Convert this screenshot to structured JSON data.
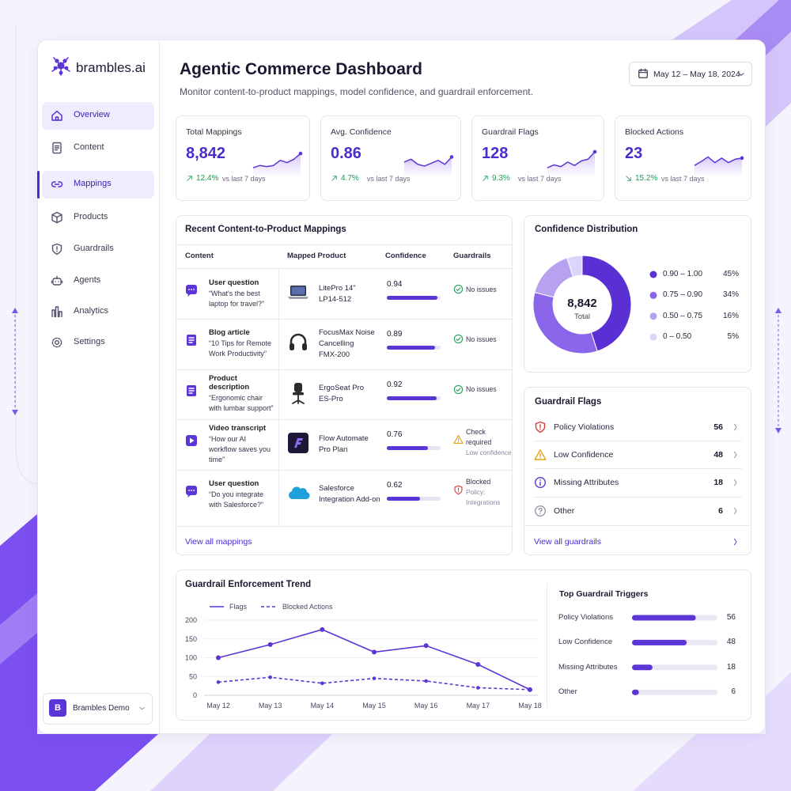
{
  "brand": {
    "name": "brambles.ai"
  },
  "nav": {
    "items": [
      "Overview",
      "Content",
      "Mappings",
      "Products",
      "Guardrails",
      "Agents",
      "Analytics",
      "Settings"
    ],
    "active": 2,
    "hovered": 0
  },
  "account": {
    "initial": "B",
    "name": "Brambles Demo"
  },
  "header": {
    "title": "Agentic Commerce Dashboard",
    "subtitle": "Monitor content-to-product mappings, model confidence, and guardrail enforcement.",
    "date_range": "May 12 – May 18, 2024"
  },
  "kpis": {
    "sparkline_ylim": [
      0,
      100
    ],
    "cards": [
      {
        "label": "Total Mappings",
        "value": "8,842",
        "change": "12.4%",
        "direction": "up",
        "compare": "vs last 7 days",
        "sparkline": [
          22,
          30,
          26,
          30,
          48,
          40,
          52,
          72
        ]
      },
      {
        "label": "Avg. Confidence",
        "value": "0.86",
        "change": "4.7%",
        "direction": "up",
        "compare": "vs last 7 days",
        "sparkline": [
          42,
          52,
          34,
          28,
          38,
          48,
          34,
          60
        ]
      },
      {
        "label": "Guardrail Flags",
        "value": "128",
        "change": "9.3%",
        "direction": "up",
        "compare": "vs last 7 days",
        "sparkline": [
          22,
          32,
          26,
          42,
          30,
          46,
          52,
          78
        ]
      },
      {
        "label": "Blocked Actions",
        "value": "23",
        "change": "15.2%",
        "direction": "down",
        "compare": "vs last 7 days",
        "sparkline": [
          30,
          44,
          60,
          40,
          56,
          40,
          52,
          56
        ]
      }
    ]
  },
  "mappings": {
    "title": "Recent Content-to-Product Mappings",
    "columns": [
      "Content",
      "Mapped Product",
      "Confidence",
      "Guardrails"
    ],
    "confidence_xlim": [
      0,
      1
    ],
    "rows": [
      {
        "type": "User question",
        "text": "“What's the best laptop for travel?”",
        "product": "LitePro 14\"",
        "detail": "LP14-512",
        "confidence": 0.94,
        "status": "No issues"
      },
      {
        "type": "Blog article",
        "text": "“10 Tips for Remote Work Productivity”",
        "product": "FocusMax Noise Cancelling",
        "detail": "FMX-200",
        "confidence": 0.89,
        "status": "No issues"
      },
      {
        "type": "Product description",
        "text": "“Ergonomic chair with lumbar support”",
        "product": "ErgoSeat Pro",
        "detail": "ES-Pro",
        "confidence": 0.92,
        "status": "No issues"
      },
      {
        "type": "Video transcript",
        "text": "“How our AI workflow saves you time”",
        "product": "Flow Automate Pro Plan",
        "confidence": 0.76,
        "status": "Check required",
        "note": "Low confidence"
      },
      {
        "type": "User question",
        "text": "“Do you integrate with Salesforce?”",
        "product": "Salesforce Integration Add-on",
        "confidence": 0.62,
        "status": "Blocked",
        "note": "Policy: Integrations"
      }
    ],
    "link": "View all mappings"
  },
  "confidence_distribution": {
    "type": "pie",
    "title": "Confidence Distribution",
    "center_value": "8,842",
    "center_label": "Total",
    "categories": [
      "0.90 – 1.00",
      "0.75 – 0.90",
      "0.50 – 0.75",
      "0 – 0.50"
    ],
    "values": [
      45,
      34,
      16,
      5
    ],
    "value_labels": [
      "45%",
      "34%",
      "16%",
      "5%"
    ],
    "colors": [
      "#5a2fd3",
      "#8b66ea",
      "#b7a2f2",
      "#ddd4fa"
    ]
  },
  "guardrail_flags": {
    "title": "Guardrail Flags",
    "items": [
      {
        "label": "Policy Violations",
        "count": 56
      },
      {
        "label": "Low Confidence",
        "count": 48
      },
      {
        "label": "Missing Attributes",
        "count": 18
      },
      {
        "label": "Other",
        "count": 6
      }
    ],
    "link": "View all guardrails"
  },
  "trend": {
    "type": "line",
    "title": "Guardrail Enforcement Trend",
    "categories": [
      "May 12",
      "May 13",
      "May 14",
      "May 15",
      "May 16",
      "May 17",
      "May 18"
    ],
    "series": [
      {
        "name": "Flags",
        "color": "#5b35d5",
        "style": "solid",
        "values": [
          100,
          135,
          175,
          115,
          132,
          82,
          15
        ]
      },
      {
        "name": "Blocked Actions",
        "color": "#5b35d5",
        "style": "dashed",
        "values": [
          35,
          48,
          32,
          45,
          38,
          20,
          15
        ]
      }
    ],
    "ylim": [
      0,
      200
    ],
    "yticks": [
      0,
      50,
      100,
      150,
      200
    ],
    "grid": true
  },
  "top_triggers": {
    "type": "bar",
    "title": "Top Guardrail Triggers",
    "categories": [
      "Policy Violations",
      "Low Confidence",
      "Missing Attributes",
      "Other"
    ],
    "values": [
      56,
      48,
      18,
      6
    ],
    "xlim": [
      0,
      75
    ],
    "color": "#5b35d5"
  }
}
